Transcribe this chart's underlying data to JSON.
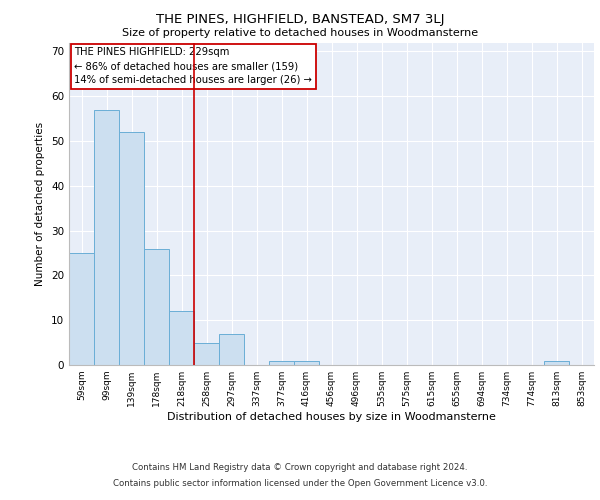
{
  "title": "THE PINES, HIGHFIELD, BANSTEAD, SM7 3LJ",
  "subtitle": "Size of property relative to detached houses in Woodmansterne",
  "xlabel": "Distribution of detached houses by size in Woodmansterne",
  "ylabel": "Number of detached properties",
  "categories": [
    "59sqm",
    "99sqm",
    "139sqm",
    "178sqm",
    "218sqm",
    "258sqm",
    "297sqm",
    "337sqm",
    "377sqm",
    "416sqm",
    "456sqm",
    "496sqm",
    "535sqm",
    "575sqm",
    "615sqm",
    "655sqm",
    "694sqm",
    "734sqm",
    "774sqm",
    "813sqm",
    "853sqm"
  ],
  "values": [
    25,
    57,
    52,
    26,
    12,
    5,
    7,
    0,
    1,
    1,
    0,
    0,
    0,
    0,
    0,
    0,
    0,
    0,
    0,
    1,
    0
  ],
  "bar_color": "#ccdff0",
  "bar_edge_color": "#6aaed6",
  "property_line_x": 4.5,
  "property_line_color": "#cc0000",
  "annotation_text": "THE PINES HIGHFIELD: 229sqm\n← 86% of detached houses are smaller (159)\n14% of semi-detached houses are larger (26) →",
  "annotation_box_color": "#cc0000",
  "ylim": [
    0,
    72
  ],
  "yticks": [
    0,
    10,
    20,
    30,
    40,
    50,
    60,
    70
  ],
  "background_color": "#e8eef8",
  "grid_color": "#ffffff",
  "footer_line1": "Contains HM Land Registry data © Crown copyright and database right 2024.",
  "footer_line2": "Contains public sector information licensed under the Open Government Licence v3.0."
}
